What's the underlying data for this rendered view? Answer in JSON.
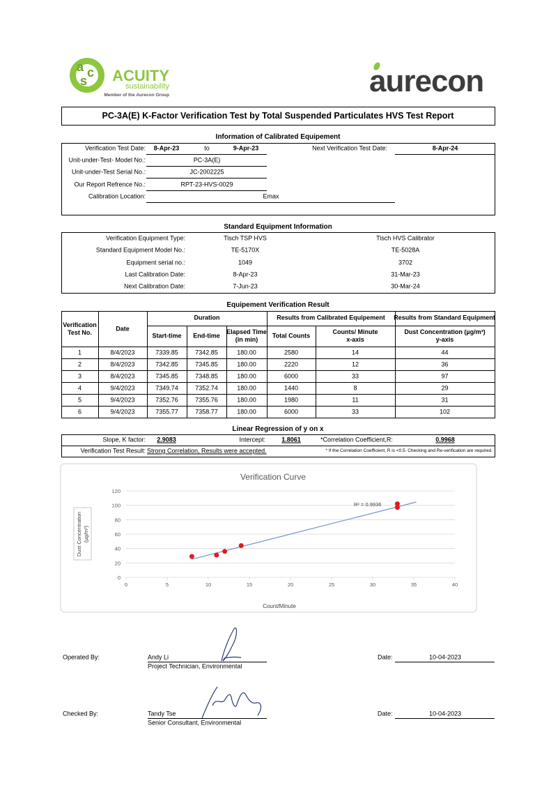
{
  "header": {
    "logo_letters": [
      "a",
      "c",
      "s"
    ],
    "brand": "ACUITY",
    "tagline": "sustainability",
    "member": "Member of the Aurecon Group",
    "partner": "aurecon"
  },
  "title": "PC-3A(E)  K-Factor Verification Test by Total Suspended Particulates HVS Test Report",
  "calibrated": {
    "heading": "Information of Calibrated Equipement",
    "date_label": "Verification Test Date:",
    "date_from": "8-Apr-23",
    "to": "to",
    "date_to": "9-Apr-23",
    "next_label": "Next Verification Test Date:",
    "next_date": "8-Apr-24",
    "model_label": "Unit-under-Test- Model No.:",
    "model": "PC-3A(E)",
    "serial_label": "Unit-under-Test Serial No.:",
    "serial": "JC-2002225",
    "report_label": "Our Report Refrence No.:",
    "report": "RPT-23-HVS-0029",
    "location_label": "Calibration Location:",
    "location": "Emax"
  },
  "standard": {
    "heading": "Standard Equipment Information",
    "rows": [
      [
        "Verification Equipment Type:",
        "Tisch TSP HVS",
        "Tisch HVS Calibrator"
      ],
      [
        "Standard Equipment Model No.:",
        "TE-5170X",
        "TE-5028A"
      ],
      [
        "Equipment serial no.:",
        "1049",
        "3702"
      ],
      [
        "Last Calibration Date:",
        "8-Apr-23",
        "31-Mar-23"
      ],
      [
        "Next Calibration Date:",
        "7-Jun-23",
        "30-Mar-24"
      ]
    ]
  },
  "result": {
    "heading": "Equipement Verification Result",
    "headers": {
      "test_no": "Verification\nTest No.",
      "date": "Date",
      "duration": "Duration",
      "calibrated": "Results from Calibrated Equipement",
      "standard": "Results from Standard Equipment",
      "start": "Start-time",
      "end": "End-time",
      "elapsed": "Elapsed Time\n(in min)",
      "total": "Total Counts",
      "cpm": "Counts/ Minute\nx-axis",
      "dust": "Dust Concentration (µg/m³)\ny-axis"
    },
    "rows": [
      [
        1,
        "8/4/2023",
        7339.85,
        7342.85,
        "180.00",
        2580,
        14,
        44
      ],
      [
        2,
        "8/4/2023",
        7342.85,
        7345.85,
        "180.00",
        2220,
        12,
        36
      ],
      [
        3,
        "8/4/2023",
        7345.85,
        7348.85,
        "180.00",
        6000,
        33,
        97
      ],
      [
        4,
        "9/4/2023",
        7349.74,
        7352.74,
        "180.00",
        1440,
        8,
        29
      ],
      [
        5,
        "9/4/2023",
        7352.76,
        7355.76,
        "180.00",
        1980,
        11,
        31
      ],
      [
        6,
        "9/4/2023",
        7355.77,
        7358.77,
        "180.00",
        6000,
        33,
        102
      ]
    ]
  },
  "regression": {
    "heading": "Linear Regression of y on x",
    "slope_label": "Slope, K factor:",
    "slope": 2.9083,
    "intercept_label": "Intercept:",
    "intercept": 1.8061,
    "r_label": "*Correlation Coefficient,R:",
    "r": 0.9968,
    "result_label": "Verification Test Result:",
    "result": "Strong Correlation, Results were accepted.",
    "note": "* If the Correlation Coefficient, R is <0.5. Checking and Re-verification are required."
  },
  "chart_data": {
    "type": "scatter",
    "title": "Verification Curve",
    "x_label": "Count/Minute",
    "y_label": [
      "Dust Concentration",
      "(µg/m³)"
    ],
    "x": [
      14,
      12,
      33,
      8,
      11,
      33
    ],
    "y": [
      44,
      36,
      97,
      29,
      31,
      102
    ],
    "color": "#e41a1c",
    "xlim": [
      0,
      40
    ],
    "xticks": [
      0,
      5,
      10,
      15,
      20,
      25,
      30,
      35,
      40
    ],
    "ylim": [
      0,
      120
    ],
    "yticks": [
      0,
      20,
      40,
      60,
      80,
      100,
      120
    ],
    "grid": true,
    "trendline": {
      "label": "R² = 0.9936",
      "x": [
        8,
        35.3
      ],
      "y": [
        25.1,
        104.5
      ],
      "color": "#6f94d0"
    }
  },
  "signatures": [
    {
      "role": "Operated By:",
      "name": "Andy Li",
      "position": "Project Technician, Environmental",
      "date_label": "Date:",
      "date": "10-04-2023"
    },
    {
      "role": "Checked By:",
      "name": "Tandy Tse",
      "position": "Senior Consultant, Environmental",
      "date_label": "Date:",
      "date": "10-04-2023"
    }
  ]
}
